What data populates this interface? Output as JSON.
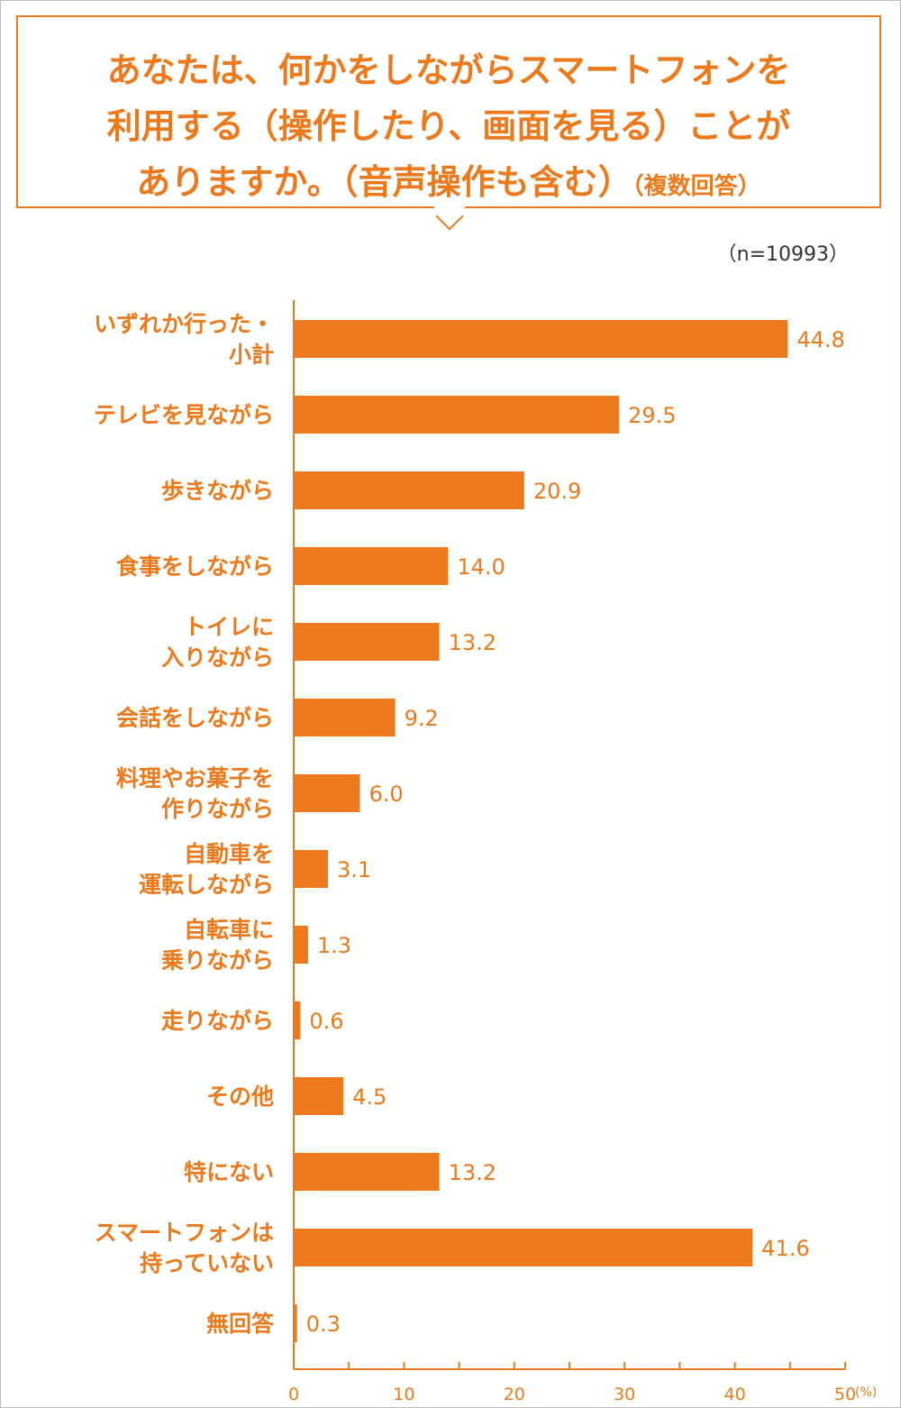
{
  "title": {
    "lines": [
      "あなたは、何かをしながらスマートフォンを",
      "利用する（操作したり、画面を見る）ことが",
      "ありますか。（音声操作も含む）"
    ],
    "note": "（複数回答）"
  },
  "sample_size": "（n=10993）",
  "colors": {
    "accent": "#ec7a1c",
    "bar": "#ec7a1c"
  },
  "chart_data": {
    "type": "bar",
    "orientation": "horizontal",
    "categories": [
      [
        "いずれか行った・",
        "小計"
      ],
      [
        "テレビを見ながら"
      ],
      [
        "歩きながら"
      ],
      [
        "食事をしながら"
      ],
      [
        "トイレに",
        "入りながら"
      ],
      [
        "会話をしながら"
      ],
      [
        "料理やお菓子を",
        "作りながら"
      ],
      [
        "自動車を",
        "運転しながら"
      ],
      [
        "自転車に",
        "乗りながら"
      ],
      [
        "走りながら"
      ],
      [
        "その他"
      ],
      [
        "特にない"
      ],
      [
        "スマートフォンは",
        "持っていない"
      ],
      [
        "無回答"
      ]
    ],
    "values": [
      44.8,
      29.5,
      20.9,
      14.0,
      13.2,
      9.2,
      6.0,
      3.1,
      1.3,
      0.6,
      4.5,
      13.2,
      41.6,
      0.3
    ],
    "value_labels": [
      "44.8",
      "29.5",
      "20.9",
      "14.0",
      "13.2",
      "9.2",
      "6.0",
      "3.1",
      "1.3",
      "0.6",
      "4.5",
      "13.2",
      "41.6",
      "0.3"
    ],
    "xlim": [
      0,
      50
    ],
    "xticks": [
      "0",
      "10",
      "20",
      "30",
      "40",
      "50"
    ],
    "x_unit": "(%)",
    "grid": false
  }
}
